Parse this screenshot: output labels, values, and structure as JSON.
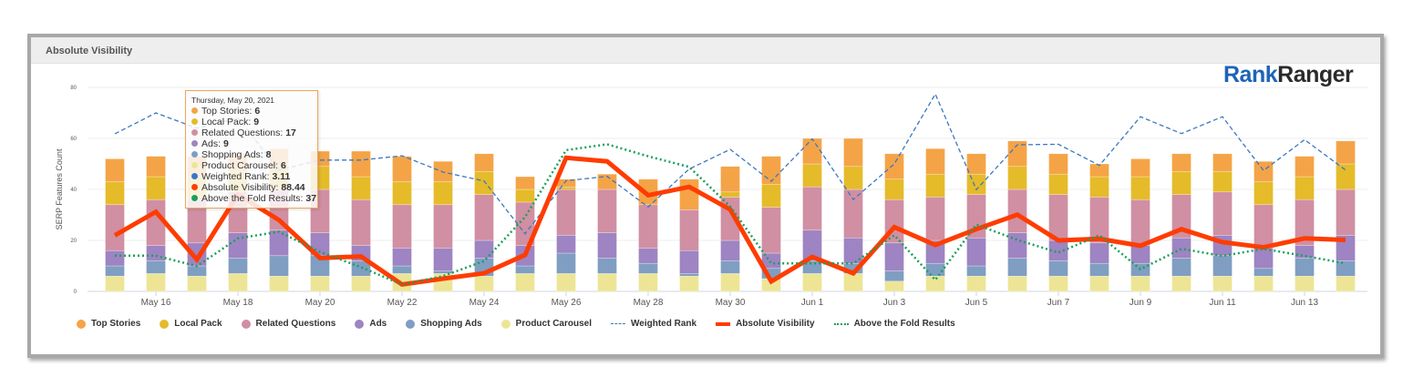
{
  "panel": {
    "title": "Absolute Visibility"
  },
  "logo": {
    "part1": "Rank",
    "part2": "Ranger"
  },
  "colors": {
    "top_stories": "#f4a447",
    "local_pack": "#e5bb2a",
    "related_questions": "#d08fa3",
    "ads": "#9e84c2",
    "shopping_ads": "#7f9ec2",
    "product_carousel": "#ede595",
    "weighted_rank": "#3b78c2",
    "absolute_visibility": "#ff3c00",
    "above_fold": "#1aa05a"
  },
  "tooltip": {
    "date": "Thursday, May 20, 2021",
    "rows": [
      {
        "label": "Top Stories: ",
        "value": "6",
        "color": "#f4a447"
      },
      {
        "label": "Local Pack: ",
        "value": "9",
        "color": "#e5bb2a"
      },
      {
        "label": "Related Questions: ",
        "value": "17",
        "color": "#d08fa3"
      },
      {
        "label": "Ads: ",
        "value": "9",
        "color": "#9e84c2"
      },
      {
        "label": "Shopping Ads: ",
        "value": "8",
        "color": "#7f9ec2"
      },
      {
        "label": "Product Carousel: ",
        "value": "6",
        "color": "#ede595"
      },
      {
        "label": "Weighted Rank: ",
        "value": "3.11",
        "color": "#3b78c2"
      },
      {
        "label": "Absolute Visibility: ",
        "value": "88.44",
        "color": "#ff3c00"
      },
      {
        "label": "Above the Fold Results: ",
        "value": "37",
        "color": "#1aa05a"
      }
    ]
  },
  "chart_data": {
    "type": "bar",
    "stacked": true,
    "title": "Absolute Visibility",
    "xlabel": "",
    "ylabel": "SERP Features Count",
    "ylim": [
      0,
      80
    ],
    "yticks": [
      "0",
      "20",
      "40",
      "60",
      "80"
    ],
    "grid": true,
    "legend_position": "bottom",
    "categories": [
      "May 15",
      "May 16",
      "May 17",
      "May 18",
      "May 19",
      "May 20",
      "May 21",
      "May 22",
      "May 23",
      "May 24",
      "May 25",
      "May 26",
      "May 27",
      "May 28",
      "May 29",
      "May 30",
      "May 31",
      "Jun 1",
      "Jun 2",
      "Jun 3",
      "Jun 4",
      "Jun 5",
      "Jun 6",
      "Jun 7",
      "Jun 8",
      "Jun 9",
      "Jun 10",
      "Jun 11",
      "Jun 12",
      "Jun 13",
      "Jun 14"
    ],
    "xtick_labels": [
      "May 16",
      "May 18",
      "May 20",
      "May 22",
      "May 24",
      "May 26",
      "May 28",
      "May 30",
      "Jun 1",
      "Jun 3",
      "Jun 5",
      "Jun 7",
      "Jun 9",
      "Jun 11",
      "Jun 13"
    ],
    "series": [
      {
        "name": "Product Carousel",
        "kind": "bar",
        "values": [
          6,
          7,
          6,
          7,
          6,
          6,
          6,
          7,
          7,
          6,
          7,
          7,
          7,
          7,
          6,
          7,
          5,
          7,
          7,
          4,
          6,
          6,
          6,
          6,
          6,
          6,
          6,
          6,
          6,
          6,
          6
        ]
      },
      {
        "name": "Shopping Ads",
        "kind": "bar",
        "values": [
          4,
          5,
          4,
          6,
          8,
          8,
          6,
          3,
          1,
          7,
          3,
          8,
          6,
          4,
          1,
          5,
          4,
          5,
          4,
          4,
          5,
          4,
          7,
          6,
          5,
          5,
          7,
          8,
          3,
          7,
          6
        ]
      },
      {
        "name": "Ads",
        "kind": "bar",
        "values": [
          6,
          6,
          9,
          10,
          10,
          9,
          6,
          7,
          9,
          7,
          8,
          7,
          10,
          6,
          9,
          8,
          6,
          12,
          10,
          11,
          9,
          11,
          10,
          8,
          8,
          7,
          8,
          8,
          8,
          5,
          10
        ]
      },
      {
        "name": "Related Questions",
        "kind": "bar",
        "values": [
          18,
          18,
          17,
          16,
          16,
          17,
          18,
          17,
          17,
          18,
          17,
          18,
          17,
          17,
          16,
          17,
          18,
          17,
          19,
          17,
          17,
          17,
          17,
          18,
          18,
          18,
          17,
          17,
          17,
          18,
          18
        ]
      },
      {
        "name": "Local Pack",
        "kind": "bar",
        "values": [
          9,
          9,
          9,
          8,
          8,
          9,
          9,
          9,
          9,
          9,
          5,
          1,
          0,
          0,
          0,
          2,
          9,
          9,
          9,
          8,
          9,
          8,
          9,
          8,
          8,
          9,
          9,
          8,
          9,
          9,
          10
        ]
      },
      {
        "name": "Top Stories",
        "kind": "bar",
        "values": [
          9,
          8,
          8,
          7,
          8,
          6,
          10,
          10,
          8,
          7,
          5,
          3,
          6,
          10,
          12,
          10,
          11,
          10,
          11,
          10,
          10,
          8,
          10,
          8,
          5,
          7,
          7,
          7,
          8,
          8,
          9
        ]
      },
      {
        "name": "Weighted Rank",
        "kind": "line",
        "style": "dashed",
        "note": "plotted on hidden secondary axis; values as drawn against the 0-80 scale",
        "values": [
          61.8,
          70,
          64,
          68,
          47.6,
          51.5,
          51.5,
          53.2,
          46.8,
          43.3,
          22.6,
          43.4,
          45.1,
          33.1,
          48,
          55.7,
          43.2,
          59.8,
          36,
          50,
          77.4,
          39.9,
          57.5,
          57.7,
          49.4,
          68.5,
          61.9,
          68.5,
          47.4,
          59.5,
          47.6
        ]
      },
      {
        "name": "Absolute Visibility",
        "kind": "line",
        "style": "thick",
        "note": "plotted on hidden secondary axis; values as drawn against the 0-80 scale",
        "values": [
          22,
          31.2,
          12.5,
          38,
          28,
          13.1,
          13.7,
          2.7,
          5,
          7.1,
          14.3,
          52.4,
          51,
          37.7,
          41,
          32.1,
          3.9,
          13.5,
          7.1,
          25.2,
          18.2,
          24.4,
          30.1,
          20,
          20.6,
          17.9,
          24.4,
          19.3,
          17.3,
          20.8,
          20.2
        ]
      },
      {
        "name": "Above the Fold Results",
        "kind": "line",
        "style": "dotted",
        "note": "plotted on hidden secondary axis; values as drawn against the 0-80 scale",
        "values": [
          14,
          14,
          9.9,
          20.8,
          23.4,
          15.5,
          9.5,
          2.7,
          6,
          11.9,
          29.2,
          55.4,
          57.7,
          53,
          48.8,
          33.3,
          11,
          11,
          11,
          22,
          4.5,
          26.2,
          20.2,
          15.2,
          22,
          8.7,
          16.7,
          13.9,
          16.7,
          13.9,
          11
        ]
      }
    ]
  },
  "legend": [
    {
      "label": "Top Stories",
      "type": "dot",
      "color": "#f4a447"
    },
    {
      "label": "Local Pack",
      "type": "dot",
      "color": "#e5bb2a"
    },
    {
      "label": "Related Questions",
      "type": "dot",
      "color": "#d08fa3"
    },
    {
      "label": "Ads",
      "type": "dot",
      "color": "#9e84c2"
    },
    {
      "label": "Shopping Ads",
      "type": "dot",
      "color": "#7f9ec2"
    },
    {
      "label": "Product Carousel",
      "type": "dot",
      "color": "#ede595"
    },
    {
      "label": "Weighted Rank",
      "type": "dashed",
      "color": "#3b78c2"
    },
    {
      "label": "Absolute Visibility",
      "type": "thick",
      "color": "#ff3c00"
    },
    {
      "label": "Above the Fold Results",
      "type": "dotted",
      "color": "#1aa05a"
    }
  ]
}
